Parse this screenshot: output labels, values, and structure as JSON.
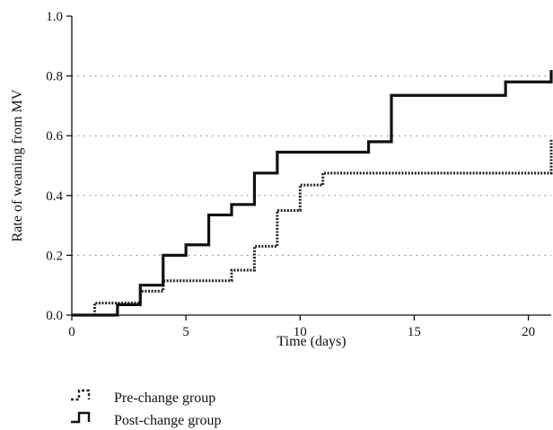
{
  "chart_data": {
    "type": "line",
    "step": true,
    "xlabel": "Time (days)",
    "ylabel": "Rate of weaning from MV",
    "xlim": [
      0,
      21
    ],
    "ylim": [
      0,
      1.0
    ],
    "x_ticks": [
      0,
      5,
      10,
      15,
      20
    ],
    "y_ticks": [
      0.0,
      0.2,
      0.4,
      0.6,
      0.8,
      1.0
    ],
    "x_tick_labels": [
      "0",
      "5",
      "10",
      "15",
      "20"
    ],
    "y_tick_labels": [
      "0.0",
      "0.2",
      "0.4",
      "0.6",
      "0.8",
      "1.0"
    ],
    "grid": "horizontal-dotted",
    "legend_position": "bottom-left",
    "series": [
      {
        "name": "Pre-change group",
        "style": "dotted",
        "color": "#222222",
        "points": [
          [
            0,
            0.0
          ],
          [
            1,
            0.04
          ],
          [
            3,
            0.08
          ],
          [
            4,
            0.115
          ],
          [
            7,
            0.15
          ],
          [
            8,
            0.23
          ],
          [
            9,
            0.35
          ],
          [
            10,
            0.435
          ],
          [
            11,
            0.475
          ],
          [
            21,
            0.59
          ]
        ]
      },
      {
        "name": "Post-change group",
        "style": "solid",
        "color": "#111111",
        "points": [
          [
            0,
            0.0
          ],
          [
            2,
            0.035
          ],
          [
            3,
            0.1
          ],
          [
            4,
            0.2
          ],
          [
            5,
            0.235
          ],
          [
            6,
            0.335
          ],
          [
            7,
            0.37
          ],
          [
            8,
            0.475
          ],
          [
            9,
            0.545
          ],
          [
            13,
            0.58
          ],
          [
            14,
            0.735
          ],
          [
            19,
            0.78
          ],
          [
            21,
            0.82
          ]
        ]
      }
    ]
  }
}
